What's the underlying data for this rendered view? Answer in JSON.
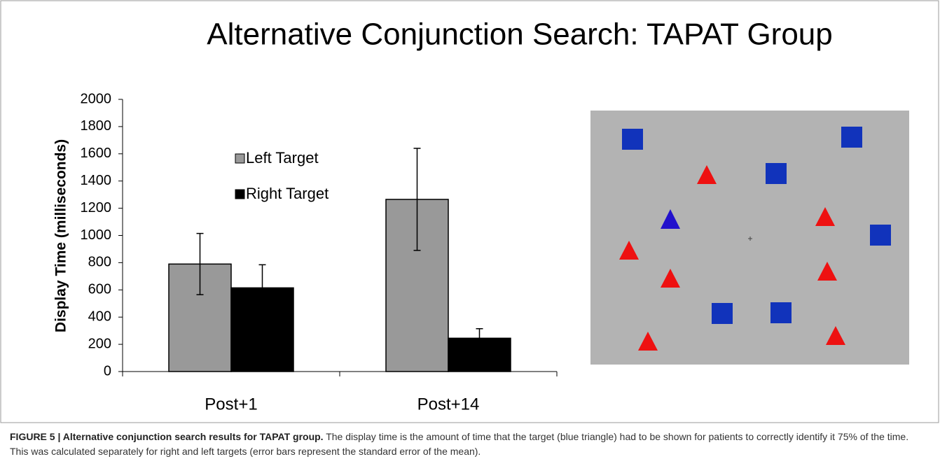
{
  "chart_data": {
    "type": "bar",
    "title": "Alternative Conjunction Search: TAPAT Group",
    "ylabel": "Display Time (milliseconds)",
    "categories": [
      "Post+1",
      "Post+14"
    ],
    "series": [
      {
        "name": "Left Target",
        "color": "#999999",
        "values": [
          790,
          1265
        ],
        "errors": [
          225,
          375
        ]
      },
      {
        "name": "Right Target",
        "color": "#000000",
        "values": [
          615,
          245
        ],
        "errors": [
          170,
          70
        ]
      }
    ],
    "ylim": [
      0,
      2000
    ],
    "yticks": [
      0,
      200,
      400,
      600,
      800,
      1000,
      1200,
      1400,
      1600,
      1800,
      2000
    ],
    "grid": false
  },
  "caption": {
    "label": "FIGURE 5 | Alternative conjunction search results for TAPAT group.",
    "text": "The display time is the amount of time that the target (blue triangle) had to be shown for patients to correctly identify it 75% of the time. This was calculated separately for right and left targets (error bars represent the standard error of the mean)."
  }
}
